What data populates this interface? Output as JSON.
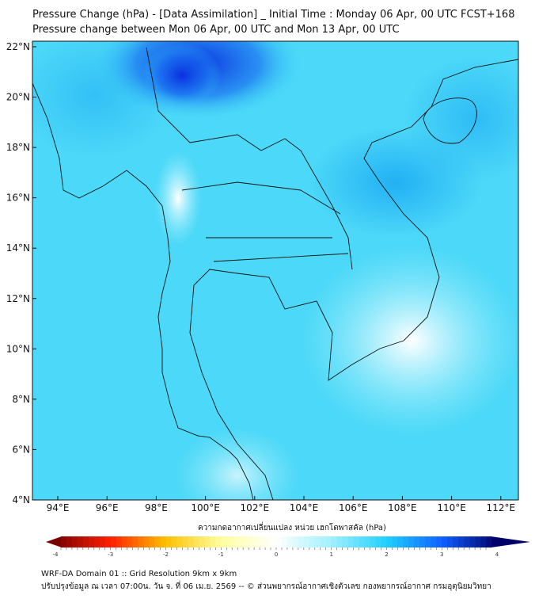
{
  "header": {
    "title": "Pressure Change (hPa) - [Data Assimilation] _ Initial Time : Monday 06 Apr, 00 UTC FCST+168",
    "subtitle": "Pressure change between Mon 06 Apr, 00 UTC and Mon 13 Apr, 00 UTC"
  },
  "map": {
    "lon_labels": [
      "94°E",
      "96°E",
      "98°E",
      "100°E",
      "102°E",
      "104°E",
      "106°E",
      "108°E",
      "110°E",
      "112°E"
    ],
    "lat_labels": [
      "22°N",
      "20°N",
      "18°N",
      "16°N",
      "14°N",
      "12°N",
      "10°N",
      "8°N",
      "6°N",
      "4°N"
    ],
    "lon_range": [
      93,
      112.7
    ],
    "lat_range": [
      4,
      22.2
    ]
  },
  "colorbar": {
    "label": "ความกดอากาศเปลี่ยนแปลง หน่วย เฮกโตพาสคัล (hPa)",
    "ticks": [
      "-4",
      "-3",
      "-2",
      "-1",
      "0",
      "1",
      "2",
      "3",
      "4"
    ],
    "range": [
      -4,
      4
    ],
    "colors": [
      "#7a0000",
      "#ff2000",
      "#ffc000",
      "#ffffa0",
      "#ffffff",
      "#a0f0ff",
      "#20d0ff",
      "#1060ff",
      "#00006a"
    ]
  },
  "footer": {
    "line1": "WRF-DA Domain 01 :: Grid Resolution 9km x 9km",
    "line2": "ปรับปรุงข้อมูล ณ เวลา 07:00น. วัน จ. ที่ 06 เม.ย. 2569 -- © ส่วนพยากรณ์อากาศเชิงตัวเลข กองพยากรณ์อากาศ กรมอุตุนิยมวิทยา"
  }
}
